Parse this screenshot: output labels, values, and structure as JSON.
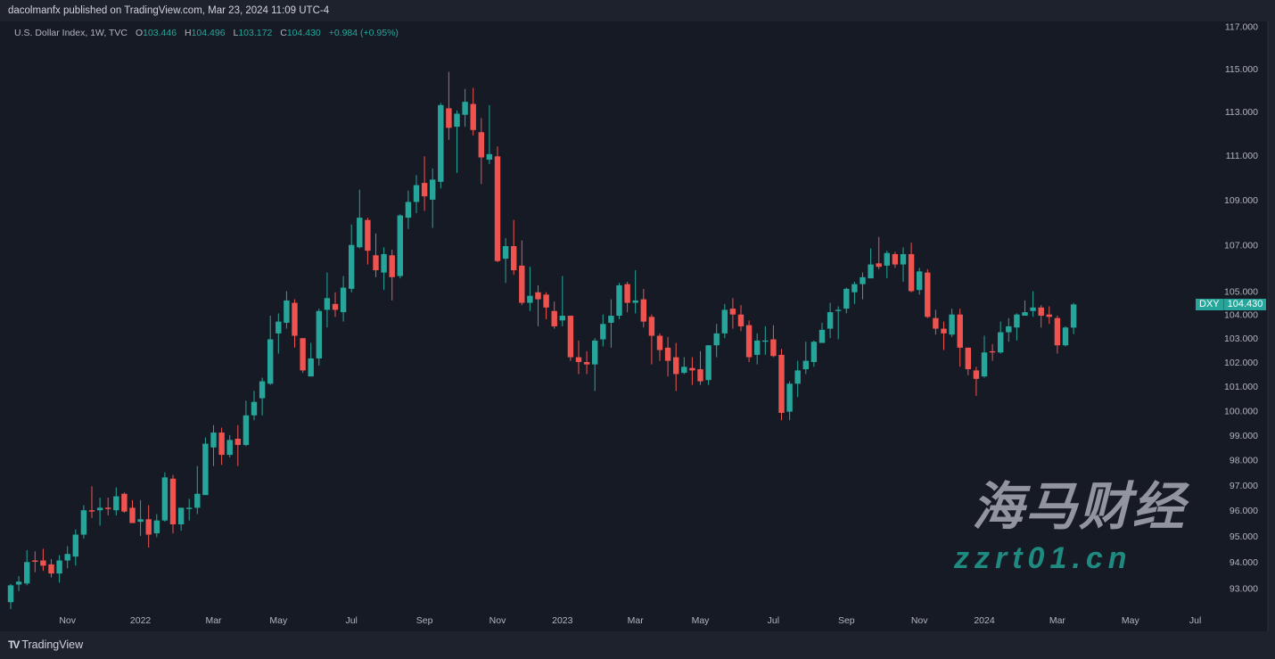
{
  "header": {
    "published": "dacolmanfx published on TradingView.com, Mar 23, 2024 11:09 UTC-4"
  },
  "legend": {
    "symbol": "U.S. Dollar Index, 1W, TVC",
    "o_label": "O",
    "o": "103.446",
    "h_label": "H",
    "h": "104.496",
    "l_label": "L",
    "l": "103.172",
    "c_label": "C",
    "c": "104.430",
    "change": "+0.984 (+0.95%)"
  },
  "price_tag": {
    "symbol": "DXY",
    "value": "104.430"
  },
  "footer": {
    "brand": "TradingView",
    "logo_mark": "TV"
  },
  "watermark": {
    "cn": "海马财经",
    "site": "zzrt01.cn"
  },
  "colors": {
    "up": "#26a69a",
    "down": "#ef5350",
    "background": "#161a25",
    "axis_text": "#b2b5be"
  },
  "chart_data": {
    "type": "candlestick",
    "symbol": "DXY",
    "interval": "1W",
    "y_scale": "log",
    "ylim": [
      92.2,
      117.2
    ],
    "grid": false,
    "y_ticks": [
      "93.000",
      "94.000",
      "95.000",
      "96.000",
      "97.000",
      "98.000",
      "99.000",
      "100.000",
      "101.000",
      "102.000",
      "103.000",
      "104.000",
      "105.000",
      "107.000",
      "109.000",
      "111.000",
      "113.000",
      "115.000",
      "117.000"
    ],
    "x_ticks": [
      {
        "label": "Nov",
        "date": "2021-11-01"
      },
      {
        "label": "2022",
        "date": "2022-01-03"
      },
      {
        "label": "Mar",
        "date": "2022-03-07"
      },
      {
        "label": "May",
        "date": "2022-05-02"
      },
      {
        "label": "Jul",
        "date": "2022-07-04"
      },
      {
        "label": "Sep",
        "date": "2022-09-05"
      },
      {
        "label": "Nov",
        "date": "2022-11-07"
      },
      {
        "label": "2023",
        "date": "2023-01-02"
      },
      {
        "label": "Mar",
        "date": "2023-03-06"
      },
      {
        "label": "May",
        "date": "2023-05-01"
      },
      {
        "label": "Jul",
        "date": "2023-07-03"
      },
      {
        "label": "Sep",
        "date": "2023-09-04"
      },
      {
        "label": "Nov",
        "date": "2023-11-06"
      },
      {
        "label": "2024",
        "date": "2024-01-01"
      },
      {
        "label": "Mar",
        "date": "2024-03-04"
      },
      {
        "label": "May",
        "date": "2024-05-06"
      },
      {
        "label": "Jul",
        "date": "2024-07-01"
      }
    ],
    "columns": [
      "date",
      "open",
      "high",
      "low",
      "close"
    ],
    "candles": [
      [
        "2021-09-13",
        92.46,
        93.15,
        92.2,
        93.1
      ],
      [
        "2021-09-20",
        93.13,
        93.45,
        92.88,
        93.24
      ],
      [
        "2021-09-27",
        93.17,
        94.45,
        93.1,
        93.99
      ],
      [
        "2021-10-04",
        94.05,
        94.4,
        93.6,
        94.0
      ],
      [
        "2021-10-11",
        94.05,
        94.5,
        93.65,
        93.85
      ],
      [
        "2021-10-18",
        93.9,
        94.1,
        93.4,
        93.55
      ],
      [
        "2021-10-25",
        93.55,
        94.25,
        93.2,
        94.05
      ],
      [
        "2021-11-01",
        94.05,
        94.6,
        93.75,
        94.3
      ],
      [
        "2021-11-08",
        94.2,
        95.25,
        93.85,
        95.05
      ],
      [
        "2021-11-15",
        95.05,
        96.2,
        94.9,
        96.0
      ],
      [
        "2021-11-22",
        96.0,
        96.95,
        95.7,
        95.95
      ],
      [
        "2021-11-29",
        96.0,
        96.5,
        95.4,
        96.1
      ],
      [
        "2021-12-06",
        96.1,
        96.5,
        95.8,
        96.05
      ],
      [
        "2021-12-13",
        96.0,
        96.9,
        95.8,
        96.55
      ],
      [
        "2021-12-20",
        96.65,
        96.7,
        95.9,
        95.95
      ],
      [
        "2021-12-27",
        96.1,
        96.4,
        95.5,
        95.5
      ],
      [
        "2022-01-03",
        95.55,
        96.4,
        95.0,
        95.65
      ],
      [
        "2022-01-10",
        95.65,
        96.2,
        94.55,
        95.05
      ],
      [
        "2022-01-17",
        95.1,
        95.85,
        94.95,
        95.6
      ],
      [
        "2022-01-24",
        95.6,
        97.5,
        95.55,
        97.3
      ],
      [
        "2022-01-31",
        97.25,
        97.4,
        95.1,
        95.45
      ],
      [
        "2022-02-07",
        95.45,
        96.1,
        95.2,
        96.1
      ],
      [
        "2022-02-14",
        96.05,
        96.45,
        95.6,
        96.1
      ],
      [
        "2022-02-21",
        96.1,
        97.75,
        95.85,
        96.65
      ],
      [
        "2022-02-28",
        96.6,
        98.9,
        96.6,
        98.65
      ],
      [
        "2022-03-07",
        98.5,
        99.4,
        97.75,
        99.1
      ],
      [
        "2022-03-14",
        99.1,
        99.3,
        97.8,
        98.2
      ],
      [
        "2022-03-21",
        98.2,
        99.0,
        98.1,
        98.8
      ],
      [
        "2022-03-28",
        98.85,
        99.4,
        97.75,
        98.6
      ],
      [
        "2022-04-04",
        98.6,
        100.4,
        98.55,
        99.8
      ],
      [
        "2022-04-11",
        99.8,
        100.8,
        99.6,
        100.35
      ],
      [
        "2022-04-18",
        100.5,
        101.35,
        99.8,
        101.2
      ],
      [
        "2022-04-25",
        101.1,
        103.95,
        101.05,
        102.95
      ],
      [
        "2022-05-02",
        103.2,
        104.05,
        102.35,
        103.7
      ],
      [
        "2022-05-09",
        103.65,
        105.0,
        103.4,
        104.6
      ],
      [
        "2022-05-16",
        104.5,
        104.65,
        102.6,
        103.1
      ],
      [
        "2022-05-23",
        103.0,
        103.0,
        101.55,
        101.65
      ],
      [
        "2022-05-30",
        101.4,
        102.8,
        101.4,
        102.15
      ],
      [
        "2022-06-06",
        102.15,
        104.25,
        101.85,
        104.15
      ],
      [
        "2022-06-13",
        104.2,
        105.8,
        103.45,
        104.7
      ],
      [
        "2022-06-20",
        104.45,
        104.95,
        103.9,
        104.2
      ],
      [
        "2022-06-27",
        104.1,
        105.65,
        103.7,
        105.15
      ],
      [
        "2022-07-04",
        105.1,
        107.9,
        104.95,
        107.0
      ],
      [
        "2022-07-11",
        106.9,
        109.45,
        106.85,
        108.2
      ],
      [
        "2022-07-18",
        108.1,
        108.2,
        106.15,
        106.75
      ],
      [
        "2022-07-25",
        106.55,
        107.5,
        105.6,
        105.9
      ],
      [
        "2022-08-01",
        105.8,
        106.9,
        105.05,
        106.6
      ],
      [
        "2022-08-08",
        106.55,
        106.8,
        104.6,
        105.6
      ],
      [
        "2022-08-15",
        105.65,
        108.35,
        105.55,
        108.3
      ],
      [
        "2022-08-22",
        108.2,
        109.4,
        107.7,
        108.9
      ],
      [
        "2022-08-29",
        108.9,
        110.1,
        108.4,
        109.65
      ],
      [
        "2022-09-05",
        109.75,
        110.95,
        108.5,
        109.15
      ],
      [
        "2022-09-12",
        109.0,
        110.4,
        107.75,
        109.9
      ],
      [
        "2022-09-19",
        109.8,
        113.4,
        109.5,
        113.3
      ],
      [
        "2022-09-26",
        113.15,
        114.85,
        111.7,
        112.25
      ],
      [
        "2022-10-03",
        112.3,
        113.05,
        110.2,
        112.9
      ],
      [
        "2022-10-10",
        112.85,
        114.05,
        112.3,
        113.45
      ],
      [
        "2022-10-17",
        113.35,
        114.1,
        111.9,
        112.15
      ],
      [
        "2022-10-24",
        112.05,
        112.7,
        109.7,
        110.9
      ],
      [
        "2022-10-31",
        110.8,
        113.3,
        110.6,
        111.05
      ],
      [
        "2022-11-07",
        110.95,
        111.4,
        106.25,
        106.3
      ],
      [
        "2022-11-14",
        106.4,
        107.3,
        105.35,
        106.95
      ],
      [
        "2022-11-21",
        106.95,
        108.1,
        105.7,
        105.9
      ],
      [
        "2022-11-28",
        106.1,
        107.2,
        104.4,
        104.5
      ],
      [
        "2022-12-05",
        104.5,
        106.05,
        104.15,
        104.8
      ],
      [
        "2022-12-12",
        104.95,
        105.25,
        103.5,
        104.65
      ],
      [
        "2022-12-19",
        104.85,
        104.95,
        103.8,
        104.3
      ],
      [
        "2022-12-26",
        104.15,
        104.55,
        103.4,
        103.5
      ],
      [
        "2023-01-02",
        103.75,
        105.65,
        103.5,
        103.95
      ],
      [
        "2023-01-09",
        103.95,
        103.95,
        102.05,
        102.2
      ],
      [
        "2023-01-16",
        102.2,
        102.9,
        101.5,
        102.0
      ],
      [
        "2023-01-23",
        102.0,
        102.45,
        101.5,
        101.9
      ],
      [
        "2023-01-30",
        101.9,
        103.0,
        100.8,
        102.9
      ],
      [
        "2023-02-06",
        102.95,
        104.0,
        102.65,
        103.6
      ],
      [
        "2023-02-13",
        103.65,
        104.65,
        102.6,
        103.95
      ],
      [
        "2023-02-20",
        103.95,
        105.35,
        103.8,
        105.25
      ],
      [
        "2023-02-27",
        105.3,
        105.4,
        104.1,
        104.5
      ],
      [
        "2023-03-06",
        104.5,
        105.9,
        104.05,
        104.6
      ],
      [
        "2023-03-13",
        104.65,
        105.1,
        103.45,
        103.7
      ],
      [
        "2023-03-20",
        103.9,
        104.0,
        101.9,
        103.1
      ],
      [
        "2023-03-27",
        103.1,
        103.2,
        102.05,
        102.5
      ],
      [
        "2023-04-03",
        102.6,
        103.05,
        101.4,
        102.05
      ],
      [
        "2023-04-10",
        102.2,
        102.8,
        100.8,
        101.5
      ],
      [
        "2023-04-17",
        101.55,
        102.2,
        101.5,
        101.8
      ],
      [
        "2023-04-24",
        101.75,
        102.2,
        101.05,
        101.65
      ],
      [
        "2023-05-01",
        101.7,
        102.45,
        101.05,
        101.2
      ],
      [
        "2023-05-08",
        101.25,
        102.7,
        101.05,
        102.7
      ],
      [
        "2023-05-15",
        102.7,
        103.6,
        102.2,
        103.2
      ],
      [
        "2023-05-22",
        103.2,
        104.45,
        103.0,
        104.2
      ],
      [
        "2023-05-29",
        104.25,
        104.7,
        103.4,
        104.0
      ],
      [
        "2023-06-05",
        104.0,
        104.4,
        103.3,
        103.5
      ],
      [
        "2023-06-12",
        103.55,
        103.75,
        102.0,
        102.2
      ],
      [
        "2023-06-19",
        102.3,
        103.2,
        101.9,
        102.9
      ],
      [
        "2023-06-26",
        102.85,
        103.5,
        102.3,
        102.9
      ],
      [
        "2023-07-03",
        102.95,
        103.55,
        102.2,
        102.25
      ],
      [
        "2023-07-10",
        102.3,
        102.55,
        99.6,
        99.9
      ],
      [
        "2023-07-17",
        99.95,
        101.2,
        99.6,
        101.1
      ],
      [
        "2023-07-24",
        101.1,
        102.05,
        100.55,
        101.65
      ],
      [
        "2023-07-31",
        101.7,
        102.85,
        101.5,
        102.05
      ],
      [
        "2023-08-07",
        102.0,
        102.9,
        101.8,
        102.85
      ],
      [
        "2023-08-14",
        102.8,
        103.65,
        102.8,
        103.35
      ],
      [
        "2023-08-21",
        103.4,
        104.5,
        103.0,
        104.1
      ],
      [
        "2023-08-28",
        104.15,
        104.35,
        102.95,
        104.2
      ],
      [
        "2023-09-04",
        104.25,
        105.15,
        104.05,
        105.1
      ],
      [
        "2023-09-11",
        104.95,
        105.4,
        104.45,
        105.3
      ],
      [
        "2023-09-18",
        105.3,
        105.8,
        104.65,
        105.6
      ],
      [
        "2023-09-25",
        105.55,
        106.85,
        105.55,
        106.15
      ],
      [
        "2023-10-02",
        106.2,
        107.35,
        105.95,
        106.05
      ],
      [
        "2023-10-09",
        106.1,
        106.75,
        105.55,
        106.65
      ],
      [
        "2023-10-16",
        106.6,
        106.7,
        106.0,
        106.15
      ],
      [
        "2023-10-23",
        106.15,
        106.9,
        105.4,
        106.6
      ],
      [
        "2023-10-30",
        106.6,
        107.1,
        104.95,
        105.0
      ],
      [
        "2023-11-06",
        105.05,
        106.0,
        104.85,
        105.85
      ],
      [
        "2023-11-13",
        105.8,
        105.95,
        103.85,
        103.9
      ],
      [
        "2023-11-20",
        103.85,
        104.2,
        103.15,
        103.4
      ],
      [
        "2023-11-27",
        103.4,
        103.7,
        102.5,
        103.2
      ],
      [
        "2023-12-04",
        103.15,
        104.25,
        103.05,
        104.0
      ],
      [
        "2023-12-11",
        104.0,
        104.25,
        101.8,
        102.6
      ],
      [
        "2023-12-18",
        102.6,
        102.6,
        101.45,
        101.7
      ],
      [
        "2023-12-25",
        101.65,
        101.8,
        100.6,
        101.3
      ],
      [
        "2024-01-01",
        101.4,
        103.1,
        101.35,
        102.4
      ],
      [
        "2024-01-08",
        102.45,
        102.75,
        102.05,
        102.4
      ],
      [
        "2024-01-15",
        102.4,
        103.7,
        102.35,
        103.25
      ],
      [
        "2024-01-22",
        103.25,
        103.85,
        102.85,
        103.5
      ],
      [
        "2024-01-29",
        103.45,
        104.05,
        102.9,
        104.0
      ],
      [
        "2024-02-05",
        103.95,
        104.6,
        103.95,
        104.1
      ],
      [
        "2024-02-12",
        104.15,
        105.0,
        103.9,
        104.3
      ],
      [
        "2024-02-19",
        104.3,
        104.4,
        103.45,
        103.95
      ],
      [
        "2024-02-26",
        104.0,
        104.35,
        103.6,
        103.9
      ],
      [
        "2024-03-04",
        103.85,
        103.95,
        102.35,
        102.7
      ],
      [
        "2024-03-11",
        102.7,
        103.5,
        102.65,
        103.45
      ],
      [
        "2024-03-18",
        103.446,
        104.496,
        103.172,
        104.43
      ]
    ]
  }
}
